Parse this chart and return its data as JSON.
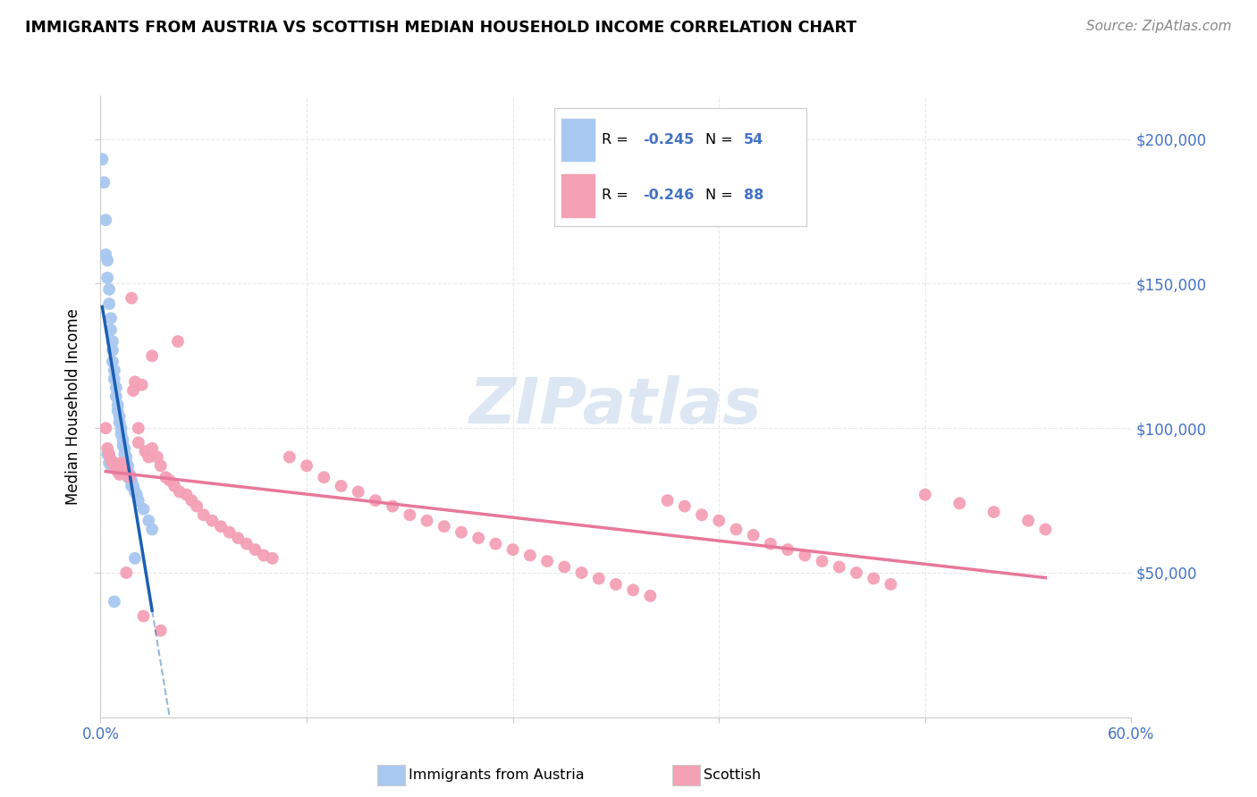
{
  "title": "IMMIGRANTS FROM AUSTRIA VS SCOTTISH MEDIAN HOUSEHOLD INCOME CORRELATION CHART",
  "source": "Source: ZipAtlas.com",
  "ylabel": "Median Household Income",
  "ytick_labels": [
    "$50,000",
    "$100,000",
    "$150,000",
    "$200,000"
  ],
  "ytick_values": [
    50000,
    100000,
    150000,
    200000
  ],
  "xlim": [
    0.0,
    0.6
  ],
  "ylim": [
    0,
    215000
  ],
  "austria_color": "#a8c8f0",
  "scottish_color": "#f4a0b5",
  "austria_line_color": "#1a5fb4",
  "scottish_line_color": "#e8789a",
  "background_color": "#ffffff",
  "grid_color": "#e8e8e8",
  "austria_x": [
    0.001,
    0.002,
    0.003,
    0.003,
    0.004,
    0.004,
    0.005,
    0.005,
    0.006,
    0.006,
    0.007,
    0.007,
    0.007,
    0.008,
    0.008,
    0.009,
    0.009,
    0.01,
    0.01,
    0.011,
    0.011,
    0.012,
    0.012,
    0.013,
    0.013,
    0.014,
    0.014,
    0.015,
    0.015,
    0.016,
    0.016,
    0.017,
    0.018,
    0.019,
    0.02,
    0.021,
    0.022,
    0.025,
    0.028,
    0.03,
    0.004,
    0.005,
    0.006,
    0.008,
    0.009,
    0.01,
    0.011,
    0.012,
    0.014,
    0.015,
    0.016,
    0.018,
    0.02,
    0.008
  ],
  "austria_y": [
    193000,
    185000,
    172000,
    160000,
    158000,
    152000,
    148000,
    143000,
    138000,
    134000,
    130000,
    127000,
    123000,
    120000,
    117000,
    114000,
    111000,
    108000,
    106000,
    104000,
    102000,
    100000,
    98000,
    96000,
    94000,
    93000,
    91000,
    90000,
    88000,
    87000,
    85000,
    84000,
    82000,
    80000,
    78000,
    77000,
    75000,
    72000,
    68000,
    65000,
    91000,
    88000,
    87000,
    88000,
    87000,
    86000,
    85000,
    86000,
    85000,
    84000,
    83000,
    80000,
    55000,
    40000
  ],
  "scottish_x": [
    0.003,
    0.004,
    0.005,
    0.006,
    0.007,
    0.008,
    0.009,
    0.01,
    0.011,
    0.012,
    0.013,
    0.014,
    0.015,
    0.016,
    0.017,
    0.018,
    0.019,
    0.02,
    0.022,
    0.024,
    0.026,
    0.028,
    0.03,
    0.033,
    0.035,
    0.038,
    0.04,
    0.043,
    0.046,
    0.05,
    0.053,
    0.056,
    0.06,
    0.065,
    0.07,
    0.075,
    0.08,
    0.085,
    0.09,
    0.095,
    0.1,
    0.11,
    0.12,
    0.13,
    0.14,
    0.15,
    0.16,
    0.17,
    0.18,
    0.19,
    0.2,
    0.21,
    0.22,
    0.23,
    0.24,
    0.25,
    0.26,
    0.27,
    0.28,
    0.29,
    0.3,
    0.31,
    0.32,
    0.33,
    0.34,
    0.35,
    0.36,
    0.37,
    0.38,
    0.39,
    0.4,
    0.41,
    0.42,
    0.43,
    0.44,
    0.45,
    0.46,
    0.48,
    0.5,
    0.52,
    0.54,
    0.55,
    0.015,
    0.025,
    0.035,
    0.022,
    0.03,
    0.045
  ],
  "scottish_y": [
    100000,
    93000,
    91000,
    89000,
    88000,
    87000,
    86000,
    85000,
    84000,
    88000,
    87000,
    86000,
    85000,
    84000,
    83000,
    145000,
    113000,
    116000,
    95000,
    115000,
    92000,
    90000,
    93000,
    90000,
    87000,
    83000,
    82000,
    80000,
    78000,
    77000,
    75000,
    73000,
    70000,
    68000,
    66000,
    64000,
    62000,
    60000,
    58000,
    56000,
    55000,
    90000,
    87000,
    83000,
    80000,
    78000,
    75000,
    73000,
    70000,
    68000,
    66000,
    64000,
    62000,
    60000,
    58000,
    56000,
    54000,
    52000,
    50000,
    48000,
    46000,
    44000,
    42000,
    75000,
    73000,
    70000,
    68000,
    65000,
    63000,
    60000,
    58000,
    56000,
    54000,
    52000,
    50000,
    48000,
    46000,
    77000,
    74000,
    71000,
    68000,
    65000,
    50000,
    35000,
    30000,
    100000,
    125000,
    130000
  ],
  "title_fontsize": 12.5,
  "source_fontsize": 11,
  "axis_label_fontsize": 12,
  "tick_fontsize": 12
}
